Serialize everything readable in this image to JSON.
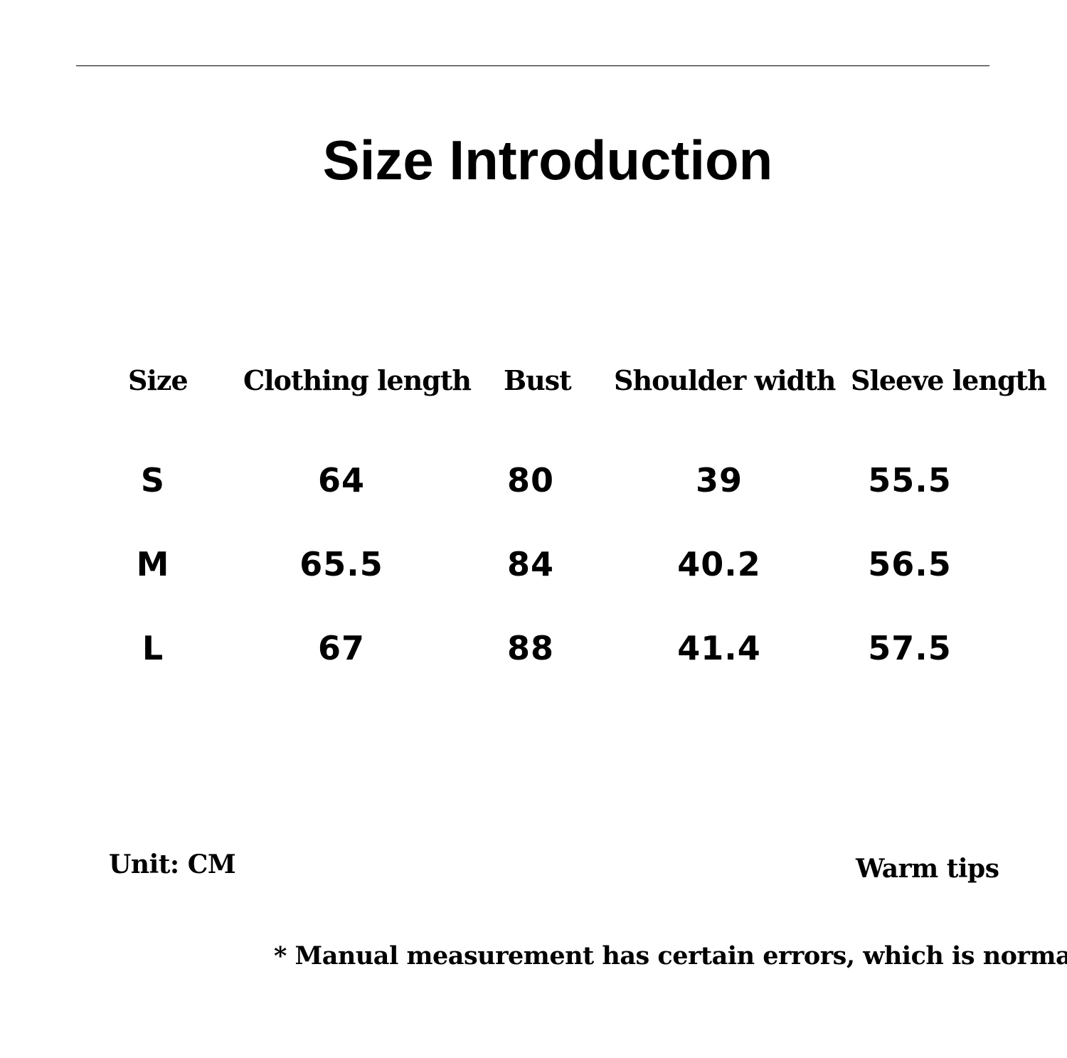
{
  "title": "Size Introduction",
  "table": {
    "headers": [
      "Size",
      "Clothing length",
      "Bust",
      "Shoulder width",
      "Sleeve length"
    ],
    "rows": [
      [
        "S",
        "64",
        "80",
        "39",
        "55.5"
      ],
      [
        "M",
        "65.5",
        "84",
        "40.2",
        "56.5"
      ],
      [
        "L",
        "67",
        "88",
        "41.4",
        "57.5"
      ]
    ]
  },
  "unit": "Unit: CM",
  "tips_label": "Warm tips",
  "note": "* Manual measurement has certain errors, which is normal."
}
